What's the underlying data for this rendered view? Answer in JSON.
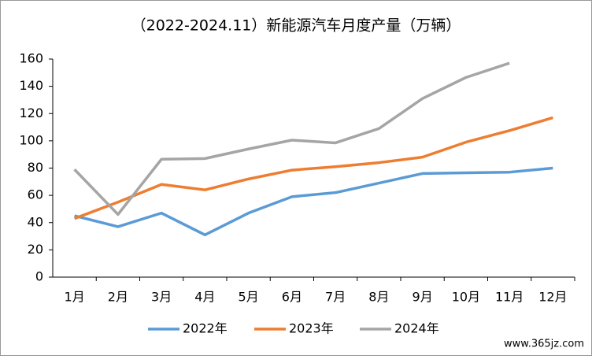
{
  "chart_data": {
    "type": "line",
    "title": "（2022-2024.11）新能源汽车月度产量（万辆）",
    "categories": [
      "1月",
      "2月",
      "3月",
      "4月",
      "5月",
      "6月",
      "7月",
      "8月",
      "9月",
      "10月",
      "11月",
      "12月"
    ],
    "series": [
      {
        "name": "2022年",
        "color": "#5b9bd5",
        "values": [
          45,
          37,
          47,
          31,
          47,
          59,
          62,
          69,
          76,
          76.5,
          77,
          80
        ]
      },
      {
        "name": "2023年",
        "color": "#ed7d31",
        "values": [
          43,
          55,
          68,
          64,
          72,
          78.5,
          81,
          84,
          88,
          99,
          107.5,
          117
        ]
      },
      {
        "name": "2024年",
        "color": "#a5a5a5",
        "values": [
          79,
          46,
          86.5,
          87,
          94,
          100.5,
          98.5,
          109,
          131,
          146.5,
          157,
          null
        ]
      }
    ],
    "ylim": [
      0,
      160
    ],
    "yticks": [
      0,
      20,
      40,
      60,
      80,
      100,
      120,
      140,
      160
    ],
    "grid": false,
    "legend": "bottom",
    "annotation": "www.365jz.com"
  }
}
